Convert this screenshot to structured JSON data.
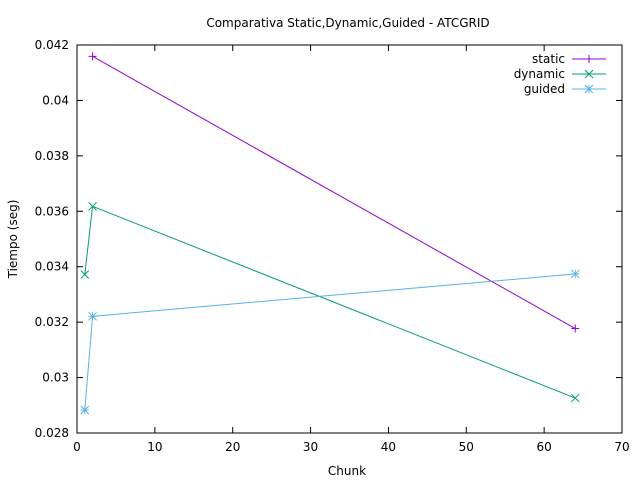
{
  "chart_data": {
    "type": "line",
    "title": "Comparativa Static,Dynamic,Guided - ATCGRID",
    "xlabel": "Chunk",
    "ylabel": "Tiempo (seg)",
    "xlim": [
      0,
      70
    ],
    "ylim": [
      0.028,
      0.042
    ],
    "x_ticks": [
      "0",
      "10",
      "20",
      "30",
      "40",
      "50",
      "60",
      "70"
    ],
    "y_ticks": [
      "0.028",
      "0.03",
      "0.032",
      "0.034",
      "0.036",
      "0.038",
      "0.04",
      "0.042"
    ],
    "grid": false,
    "legend_position": "top-right",
    "series": [
      {
        "name": "static",
        "color": "#9400d3",
        "marker": "plus",
        "points": [
          [
            2,
            0.04159
          ],
          [
            64,
            0.03177
          ]
        ]
      },
      {
        "name": "dynamic",
        "color": "#009e73",
        "marker": "cross",
        "points": [
          [
            1,
            0.03372
          ],
          [
            2,
            0.03618
          ],
          [
            64,
            0.02926
          ]
        ]
      },
      {
        "name": "guided",
        "color": "#56b4e9",
        "marker": "star",
        "points": [
          [
            1,
            0.02883
          ],
          [
            2,
            0.03221
          ],
          [
            64,
            0.03374
          ]
        ]
      }
    ]
  }
}
